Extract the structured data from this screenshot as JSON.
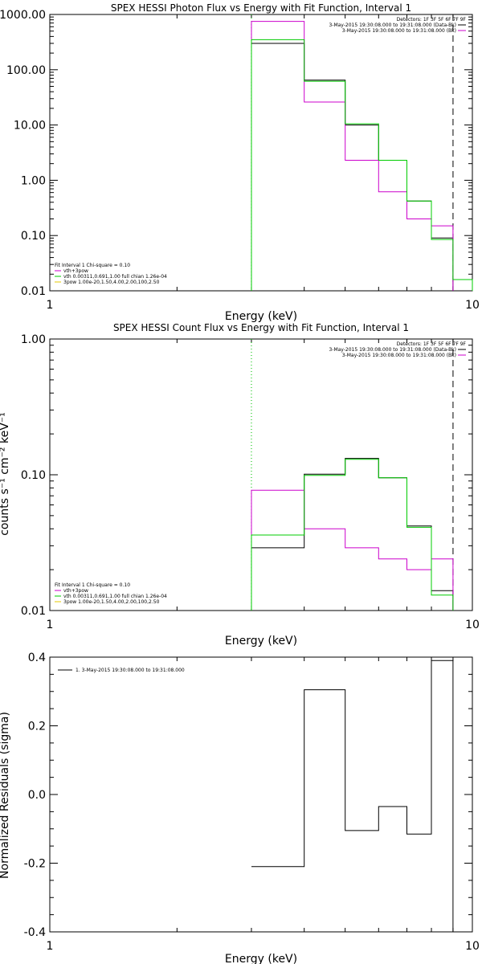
{
  "colors": {
    "black": "#000000",
    "magenta": "#cc00cc",
    "green": "#00cc00",
    "yellow": "#e6c800"
  },
  "chart_data": [
    {
      "type": "line",
      "title": "SPEX HESSI Photon Flux vs Energy with Fit Function, Interval 1",
      "xlabel": "Energy (keV)",
      "ylabel": "",
      "xscale": "log",
      "yscale": "log",
      "xlim": [
        1,
        10
      ],
      "ylim": [
        0.01,
        1000
      ],
      "xticks": [
        "1",
        "10"
      ],
      "yticks": [
        "0.01",
        "0.10",
        "1.00",
        "10.00",
        "100.00",
        "1000.00"
      ],
      "vlines": [
        {
          "x": 3.0,
          "style": "dotted",
          "color": "#000000"
        },
        {
          "x": 3.0,
          "style": "dotted",
          "color": "#00cc00"
        },
        {
          "x": 9.0,
          "style": "dashed",
          "color": "#000000"
        }
      ],
      "legend_top": [
        {
          "text": "Detectors: 1F 3F 5F 6F 7F 9F",
          "color": "#000000"
        },
        {
          "text": "3-May-2015 19:30:08.000 to 19:31:08.000 (Data-Bk)",
          "color": "#000000"
        },
        {
          "text": "3-May-2015 19:30:08.000 to 19:31:08.000 (Bk)",
          "color": "#cc00cc"
        }
      ],
      "legend_bottom": [
        {
          "text": "Fit Interval 1    Chi-square = 0.10",
          "color": "#000000"
        },
        {
          "text": "vth+3pow",
          "color": "#cc00cc"
        },
        {
          "text": "vth 0.00311,0.691,1.00   full chian 1.26e-04",
          "color": "#00cc00"
        },
        {
          "text": "3pow 1.00e-20,1.50,4.00,2.00,100,2.50",
          "color": "#e6c800"
        }
      ],
      "edges": [
        3.0,
        4.0,
        5.0,
        6.0,
        7.0,
        8.0,
        9.0,
        10.0
      ],
      "series": [
        {
          "name": "Data-Bk",
          "color": "#000000",
          "values": [
            300,
            65,
            10,
            2.3,
            0.42,
            0.09,
            null
          ]
        },
        {
          "name": "Bk",
          "color": "#cc00cc",
          "values": [
            750,
            26,
            2.3,
            0.62,
            0.2,
            0.15,
            null
          ]
        },
        {
          "name": "vth+3pow",
          "color": "#00cc00",
          "values": [
            350,
            62,
            10.5,
            2.3,
            0.42,
            0.085,
            0.016
          ]
        }
      ]
    },
    {
      "type": "line",
      "title": "SPEX HESSI Count Flux vs Energy with Fit Function, Interval 1",
      "xlabel": "Energy (keV)",
      "ylabel": "counts s⁻¹ cm⁻² keV⁻¹",
      "xscale": "log",
      "yscale": "log",
      "xlim": [
        1,
        10
      ],
      "ylim": [
        0.01,
        1
      ],
      "xticks": [
        "1",
        "10"
      ],
      "yticks": [
        "0.01",
        "0.10",
        "1.00"
      ],
      "vlines": [
        {
          "x": 3.0,
          "style": "dotted",
          "color": "#000000"
        },
        {
          "x": 3.0,
          "style": "dotted",
          "color": "#00cc00"
        },
        {
          "x": 9.0,
          "style": "dashed",
          "color": "#000000"
        }
      ],
      "legend_top": [
        {
          "text": "Detectors: 1F 3F 5F 6F 7F 9F",
          "color": "#000000"
        },
        {
          "text": "3-May-2015 19:30:08.000 to 19:31:08.000 (Data-Bk)",
          "color": "#000000"
        },
        {
          "text": "3-May-2015 19:30:08.000 to 19:31:08.000 (Bk)",
          "color": "#cc00cc"
        }
      ],
      "legend_bottom": [
        {
          "text": "Fit Interval 1    Chi-square = 0.10",
          "color": "#000000"
        },
        {
          "text": "vth+3pow",
          "color": "#cc00cc"
        },
        {
          "text": "vth 0.00311,0.691,1.00   full chian 1.26e-04",
          "color": "#00cc00"
        },
        {
          "text": "3pow 1.00e-20,1.50,4.00,2.00,100,2.50",
          "color": "#e6c800"
        }
      ],
      "edges": [
        3.0,
        4.0,
        5.0,
        6.0,
        7.0,
        8.0,
        9.0
      ],
      "series": [
        {
          "name": "Data-Bk",
          "color": "#000000",
          "values": [
            0.029,
            0.101,
            0.132,
            0.095,
            0.042,
            0.014
          ]
        },
        {
          "name": "Bk",
          "color": "#cc00cc",
          "values": [
            0.077,
            0.04,
            0.029,
            0.024,
            0.02,
            0.024
          ]
        },
        {
          "name": "vth+3pow",
          "color": "#00cc00",
          "values": [
            0.036,
            0.099,
            0.13,
            0.095,
            0.041,
            0.013
          ]
        }
      ]
    },
    {
      "type": "line",
      "title": "",
      "xlabel": "Energy (keV)",
      "ylabel": "Normalized Residuals (sigma)",
      "xscale": "log",
      "yscale": "linear",
      "xlim": [
        1,
        10
      ],
      "ylim": [
        -0.4,
        0.4
      ],
      "xticks": [
        "1",
        "10"
      ],
      "yticks": [
        "-0.4",
        "-0.2",
        "0.0",
        "0.2",
        "0.4"
      ],
      "legend_top": [
        {
          "text": "1.  3-May-2015 19:30:08.000 to 19:31:08.000",
          "color": "#000000"
        }
      ],
      "edges": [
        3.0,
        4.0,
        5.0,
        6.0,
        7.0,
        8.0,
        9.0
      ],
      "series": [
        {
          "name": "1.  3-May-2015 19:30:08.000 to 19:31:08.000",
          "color": "#000000",
          "values": [
            -0.21,
            0.305,
            -0.105,
            -0.035,
            -0.115,
            0.39
          ]
        }
      ]
    }
  ]
}
